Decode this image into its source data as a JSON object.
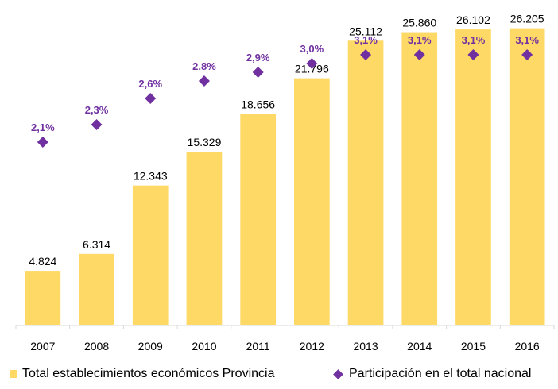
{
  "chart_data": {
    "type": "bar",
    "categories": [
      "2007",
      "2008",
      "2009",
      "2010",
      "2011",
      "2012",
      "2013",
      "2014",
      "2015",
      "2016"
    ],
    "series": [
      {
        "name": "Total establecimientos económicos Provincia",
        "kind": "bar",
        "color": "#FFD966",
        "values": [
          4824,
          6314,
          12343,
          15329,
          18656,
          21796,
          25112,
          25860,
          26102,
          26205
        ],
        "labels": [
          "4.824",
          "6.314",
          "12.343",
          "15.329",
          "18.656",
          "21.796",
          "25.112",
          "25.860",
          "26.102",
          "26.205"
        ]
      },
      {
        "name": "Participación en el total nacional",
        "kind": "marker-diamond",
        "color": "#7030A0",
        "values": [
          2.1,
          2.3,
          2.6,
          2.8,
          2.9,
          3.0,
          3.1,
          3.1,
          3.1,
          3.1
        ],
        "labels": [
          "2,1%",
          "2,3%",
          "2,6%",
          "2,8%",
          "2,9%",
          "3,0%",
          "3,1%",
          "3,1%",
          "3,1%",
          "3,1%"
        ]
      }
    ],
    "bar_ylim": [
      0,
      28000
    ],
    "pct_ylim": [
      0,
      3.6
    ],
    "grid": false,
    "legend_position": "bottom"
  }
}
